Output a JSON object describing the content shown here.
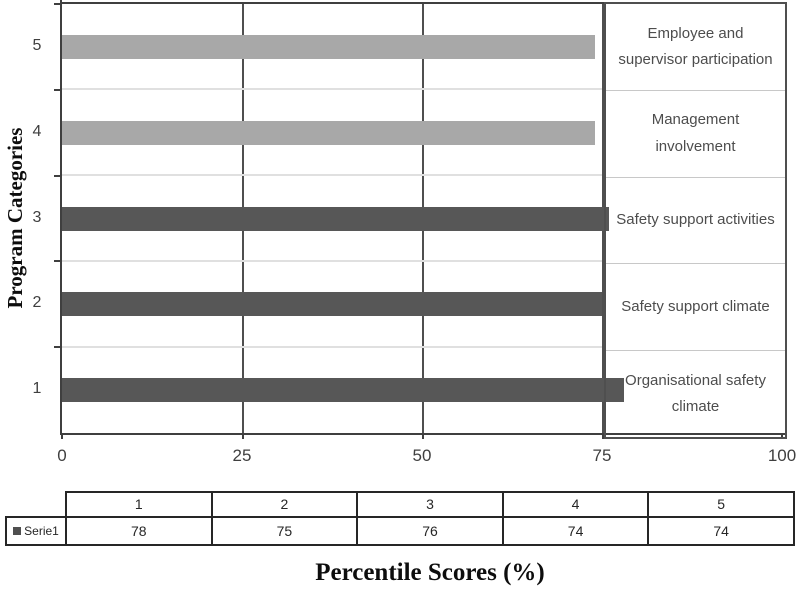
{
  "figure": {
    "x_axis_title": "Percentile Scores (%)",
    "y_axis_title": "Program Categories",
    "x_ticks": [
      "0",
      "25",
      "50",
      "75",
      "100"
    ],
    "category_axis_labels": [
      "5",
      "4",
      "3",
      "2",
      "1"
    ],
    "side_labels": [
      "Employee and supervisor participation",
      "Management involvement",
      "Safety support activities",
      "Safety support climate",
      "Organisational safety climate"
    ]
  },
  "chart_data": {
    "type": "bar",
    "orientation": "horizontal",
    "title": "",
    "xlabel": "Percentile Scores (%)",
    "ylabel": "Program Categories",
    "xlim": [
      0,
      100
    ],
    "x_ticks": [
      0,
      25,
      50,
      75,
      100
    ],
    "grid": "vertical-gridlines-on",
    "categories": [
      "1",
      "2",
      "3",
      "4",
      "5"
    ],
    "category_descriptions": [
      "Organisational safety climate",
      "Safety support climate",
      "Safety support activities",
      "Management involvement",
      "Employee and supervisor participation"
    ],
    "series": [
      {
        "name": "Serie1",
        "values": [
          78,
          75,
          76,
          74,
          74
        ]
      }
    ],
    "bar_colors": [
      "#575757",
      "#575757",
      "#575757",
      "#a8a8a8",
      "#a8a8a8"
    ],
    "legend_position": "data-table-left"
  },
  "table": {
    "header": [
      "1",
      "2",
      "3",
      "4",
      "5"
    ],
    "rows": [
      {
        "label": "Serie1",
        "values": [
          "78",
          "75",
          "76",
          "74",
          "74"
        ]
      }
    ],
    "legend_marker_color": "#4f4f4f"
  }
}
